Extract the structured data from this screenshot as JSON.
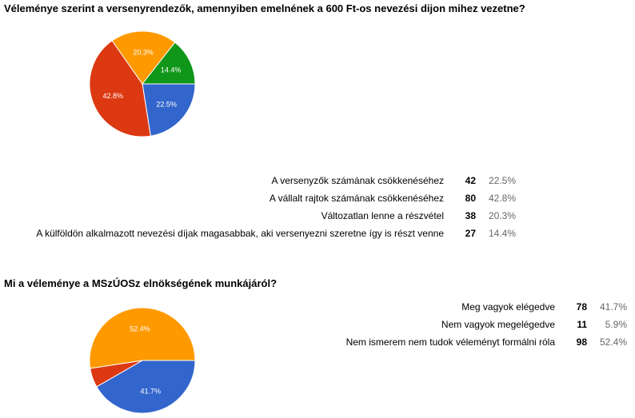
{
  "chart_data": [
    {
      "type": "pie",
      "title": "Véleménye szerint a versenyrendezők, amennyiben emelnének a 600 Ft-os nevezési dijon mihez vezetne?",
      "start_angle_deg": 90,
      "slices": [
        {
          "label": "A versenyzők számának csökkenéséhez",
          "count": 42,
          "percent_text": "22.5%",
          "value": 22.5,
          "color": "#3366cc"
        },
        {
          "label": "A vállalt rajtok számának csökkenéséhez",
          "count": 80,
          "percent_text": "42.8%",
          "value": 42.8,
          "color": "#dc3912"
        },
        {
          "label": "Változatlan lenne a részvétel",
          "count": 38,
          "percent_text": "20.3%",
          "value": 20.3,
          "color": "#ff9900"
        },
        {
          "label": "A külföldön alkalmazott nevezési díjak magasabbak, aki versenyezni szeretne így is részt venne",
          "count": 27,
          "percent_text": "14.4%",
          "value": 14.4,
          "color": "#109618"
        }
      ]
    },
    {
      "type": "pie",
      "title": "Mi a véleménye a MSzÚOSz elnökségének munkájáról?",
      "start_angle_deg": 90,
      "slices": [
        {
          "label": "Meg vagyok elégedve",
          "count": 78,
          "percent_text": "41.7%",
          "value": 41.7,
          "color": "#3366cc"
        },
        {
          "label": "Nem vagyok megelégedve",
          "count": 11,
          "percent_text": "5.9%",
          "value": 5.9,
          "color": "#dc3912"
        },
        {
          "label": "Nem ismerem nem tudok véleményt formálni róla",
          "count": 98,
          "percent_text": "52.4%",
          "value": 52.4,
          "color": "#ff9900"
        }
      ]
    }
  ]
}
